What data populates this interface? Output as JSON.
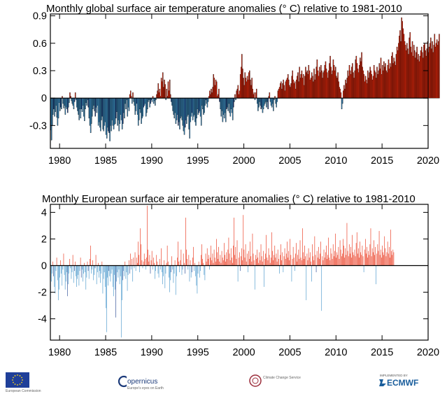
{
  "chart_data": [
    {
      "type": "bar",
      "title": "Monthly  global surface air temperature anomalies (° C) relative to 1981-2010",
      "xlabel": "",
      "ylabel": "",
      "xlim": [
        1979,
        2020
      ],
      "ylim": [
        -0.55,
        0.92
      ],
      "x_ticks": [
        1980,
        1985,
        1990,
        1995,
        2000,
        2005,
        2010,
        2015,
        2020
      ],
      "x_tick_labels": [
        "1980",
        "1985",
        "1990",
        "1995",
        "2000",
        "2005",
        "2010",
        "2015",
        "2020"
      ],
      "y_ticks": [
        0.9,
        0.6,
        0.3,
        0,
        -0.3
      ],
      "y_tick_labels": [
        "0.9",
        "0.6",
        "0.3",
        "0",
        "-0.3"
      ],
      "grid": false,
      "colors": {
        "positive": "#e8270a",
        "negative": "#3a8fc7",
        "negative_dark": "#1a3c8c",
        "outline": "#000000"
      },
      "start_year": 1979,
      "months_per_point": 1,
      "values": [
        -0.35,
        -0.46,
        -0.3,
        -0.18,
        -0.12,
        -0.2,
        -0.15,
        -0.08,
        -0.21,
        -0.3,
        -0.22,
        -0.05,
        -0.14,
        -0.1,
        -0.12,
        0.02,
        -0.06,
        -0.11,
        -0.08,
        -0.18,
        -0.1,
        -0.12,
        -0.16,
        -0.1,
        -0.05,
        0.06,
        0.02,
        -0.03,
        -0.06,
        -0.08,
        -0.12,
        -0.04,
        0.06,
        -0.02,
        -0.1,
        -0.14,
        -0.18,
        -0.24,
        -0.12,
        -0.22,
        -0.12,
        -0.15,
        -0.08,
        -0.2,
        -0.25,
        -0.12,
        -0.05,
        -0.08,
        -0.02,
        -0.1,
        -0.22,
        -0.3,
        -0.38,
        -0.28,
        -0.2,
        -0.12,
        -0.08,
        -0.14,
        -0.2,
        -0.1,
        -0.16,
        -0.08,
        -0.3,
        -0.26,
        -0.32,
        -0.36,
        -0.24,
        -0.2,
        -0.34,
        -0.36,
        -0.3,
        -0.26,
        -0.4,
        -0.44,
        -0.32,
        -0.36,
        -0.38,
        -0.47,
        -0.3,
        -0.36,
        -0.24,
        -0.3,
        -0.34,
        -0.29,
        -0.28,
        -0.22,
        -0.15,
        -0.3,
        -0.24,
        -0.36,
        -0.28,
        -0.18,
        -0.24,
        -0.34,
        -0.28,
        -0.16,
        -0.22,
        -0.06,
        -0.12,
        -0.02,
        -0.2,
        -0.1,
        -0.14,
        0.04,
        0.08,
        0.02,
        -0.06,
        0.06,
        -0.04,
        -0.08,
        -0.18,
        -0.14,
        -0.06,
        -0.18,
        -0.3,
        -0.24,
        -0.12,
        -0.16,
        -0.28,
        -0.22,
        -0.2,
        -0.1,
        -0.08,
        -0.06,
        -0.2,
        -0.16,
        -0.12,
        -0.04,
        -0.02,
        -0.1,
        -0.06,
        -0.02,
        -0.04,
        0.02,
        -0.06,
        -0.03,
        -0.08,
        -0.02,
        0.04,
        0.08,
        0.16,
        0.06,
        0.1,
        0.02,
        0.22,
        0.18,
        0.28,
        0.12,
        0.2,
        0.15,
        -0.02,
        0.1,
        0.02,
        0.18,
        0.08,
        0.2,
        0.04,
        -0.04,
        -0.08,
        -0.14,
        -0.18,
        -0.22,
        -0.16,
        -0.28,
        -0.24,
        -0.18,
        -0.3,
        -0.26,
        -0.34,
        -0.22,
        -0.2,
        -0.24,
        -0.3,
        -0.36,
        -0.4,
        -0.32,
        -0.24,
        -0.28,
        -0.2,
        -0.18,
        -0.34,
        -0.44,
        -0.26,
        -0.2,
        -0.16,
        -0.24,
        -0.2,
        -0.18,
        -0.26,
        -0.3,
        -0.22,
        -0.12,
        -0.18,
        -0.16,
        -0.14,
        -0.2,
        -0.3,
        -0.08,
        -0.12,
        -0.18,
        -0.16,
        -0.08,
        -0.02,
        -0.06,
        -0.1,
        -0.04,
        0.02,
        0.08,
        0.04,
        0.1,
        0.06,
        0.12,
        0.26,
        0.22,
        0.14,
        0.2,
        0.18,
        0.02,
        0.04,
        0.1,
        -0.04,
        -0.12,
        -0.2,
        -0.14,
        -0.26,
        -0.18,
        -0.22,
        -0.16,
        -0.26,
        -0.12,
        -0.1,
        -0.14,
        -0.06,
        -0.16,
        -0.2,
        -0.12,
        -0.16,
        -0.24,
        -0.1,
        -0.04,
        0.04,
        -0.02,
        0.08,
        0.1,
        0.14,
        0.04,
        0.08,
        0.26,
        0.34,
        0.48,
        0.32,
        0.22,
        0.14,
        0.28,
        0.22,
        0.18,
        0.24,
        0.2,
        0.28,
        0.3,
        0.2,
        0.14,
        0.22,
        0.1,
        0.04,
        0.06,
        -0.02,
        0.06,
        0.1,
        -0.06,
        -0.14,
        -0.1,
        -0.04,
        -0.08,
        -0.12,
        -0.1,
        -0.16,
        -0.12,
        -0.08,
        -0.06,
        -0.04,
        -0.1,
        -0.04,
        -0.12,
        0.02,
        0.06,
        -0.04,
        -0.08,
        -0.1,
        -0.06,
        -0.14,
        -0.02,
        0.02,
        -0.06,
        -0.1,
        -0.04,
        0.08,
        0.1,
        0.12,
        0.16,
        0.18,
        0.1,
        0.16,
        0.2,
        0.14,
        0.08,
        0.18,
        0.2,
        0.22,
        0.26,
        0.2,
        0.14,
        0.12,
        0.16,
        0.24,
        0.3,
        0.2,
        0.16,
        0.18,
        0.1,
        0.2,
        0.24,
        0.28,
        0.18,
        0.34,
        0.22,
        0.26,
        0.3,
        0.22,
        0.26,
        0.14,
        0.24,
        0.34,
        0.28,
        0.3,
        0.26,
        0.36,
        0.3,
        0.2,
        0.22,
        0.28,
        0.24,
        0.18,
        0.32,
        0.2,
        0.26,
        0.34,
        0.42,
        0.3,
        0.24,
        0.34,
        0.28,
        0.36,
        0.3,
        0.22,
        0.28,
        0.3,
        0.36,
        0.4,
        0.32,
        0.28,
        0.22,
        0.3,
        0.38,
        0.46,
        0.34,
        0.26,
        0.3,
        0.42,
        0.36,
        0.3,
        0.34,
        0.24,
        0.22,
        0.28,
        0.18,
        0.12,
        0.1,
        0.06,
        -0.12,
        -0.06,
        0.08,
        0.14,
        0.1,
        0.2,
        0.16,
        0.22,
        0.3,
        0.24,
        0.36,
        0.3,
        0.26,
        0.34,
        0.38,
        0.28,
        0.22,
        0.3,
        0.42,
        0.46,
        0.38,
        0.32,
        0.28,
        0.36,
        0.44,
        0.4,
        0.5,
        0.34,
        0.3,
        0.26,
        0.18,
        0.24,
        0.2,
        0.16,
        0.3,
        0.22,
        0.28,
        0.34,
        0.3,
        0.26,
        0.2,
        0.24,
        0.36,
        0.3,
        0.28,
        0.22,
        0.34,
        0.26,
        0.3,
        0.38,
        0.32,
        0.44,
        0.26,
        0.36,
        0.3,
        0.4,
        0.34,
        0.38,
        0.3,
        0.28,
        0.36,
        0.42,
        0.32,
        0.38,
        0.34,
        0.46,
        0.5,
        0.38,
        0.44,
        0.4,
        0.36,
        0.48,
        0.56,
        0.52,
        0.6,
        0.68,
        0.74,
        0.62,
        0.88,
        0.84,
        0.76,
        0.7,
        0.62,
        0.58,
        0.52,
        0.6,
        0.54,
        0.48,
        0.66,
        0.72,
        0.56,
        0.5,
        0.62,
        0.46,
        0.58,
        0.52,
        0.44,
        0.5,
        0.56,
        0.42,
        0.48,
        0.4,
        0.46,
        0.52,
        0.56,
        0.5,
        0.44,
        0.58,
        0.6,
        0.52,
        0.46,
        0.54,
        0.62,
        0.5,
        0.56,
        0.6,
        0.66,
        0.54,
        0.62,
        0.5,
        0.58,
        0.7,
        0.56,
        0.6,
        0.64,
        0.58,
        0.62,
        0.7
      ]
    },
    {
      "type": "bar",
      "title": "Monthly  European surface air temperature anomalies (° C) relative to 1981-2010",
      "xlabel": "",
      "ylabel": "",
      "xlim": [
        1979,
        2020
      ],
      "ylim": [
        -5.6,
        4.6
      ],
      "x_ticks": [
        1980,
        1985,
        1990,
        1995,
        2000,
        2005,
        2010,
        2015,
        2020
      ],
      "x_tick_labels": [
        "1980",
        "1985",
        "1990",
        "1995",
        "2000",
        "2005",
        "2010",
        "2015",
        "2020"
      ],
      "y_ticks": [
        4,
        2,
        0,
        -2,
        -4
      ],
      "y_tick_labels": [
        "4",
        "2",
        "0",
        "-2",
        "-4"
      ],
      "grid": false,
      "colors": {
        "positive": "#e8270a",
        "negative": "#3a8fc7",
        "negative_dark": "#1a3c8c"
      },
      "start_year": 1979,
      "months_per_point": 1,
      "values": [
        -2.5,
        -1.2,
        -0.6,
        0.3,
        -0.8,
        -1.6,
        -2.1,
        -0.4,
        0.6,
        -1.1,
        -2.6,
        -1.8,
        -0.9,
        0.4,
        -0.6,
        -1.5,
        -0.3,
        0.9,
        -0.7,
        -1.8,
        -1.2,
        -0.5,
        -2.3,
        -1.4,
        -0.6,
        0.5,
        -0.2,
        -1.0,
        -0.5,
        0.8,
        -1.3,
        -0.4,
        0.3,
        -0.8,
        -1.6,
        -1.0,
        -0.7,
        -1.5,
        -0.4,
        0.6,
        -0.9,
        -0.3,
        -1.2,
        -0.6,
        0.2,
        -0.5,
        -1.8,
        -0.9,
        0.3,
        -0.4,
        -1.0,
        0.5,
        1.5,
        -0.6,
        -0.3,
        0.4,
        -1.1,
        -0.7,
        -0.2,
        0.8,
        -1.4,
        -0.5,
        0.2,
        -0.9,
        -0.4,
        -1.3,
        -0.6,
        0.3,
        -2.1,
        -1.0,
        -0.5,
        -1.6,
        -3.2,
        -5.0,
        -0.9,
        -1.5,
        -0.4,
        -0.8,
        -1.2,
        -0.6,
        -0.3,
        -1.6,
        -2.3,
        -0.7,
        -1.8,
        -3.9,
        -1.2,
        -0.5,
        -0.9,
        -0.3,
        -1.4,
        -0.8,
        -5.4,
        -2.6,
        -1.1,
        -0.4,
        -0.8,
        0.3,
        -1.0,
        -0.5,
        -1.9,
        -0.7,
        0.4,
        -0.6,
        0.9,
        -0.3,
        0.5,
        -1.2,
        0.6,
        -0.2,
        1.0,
        -0.4,
        0.6,
        0.2,
        1.8,
        0.8,
        -0.5,
        2.8,
        1.6,
        0.4,
        -0.2,
        0.3,
        0.9,
        0.5,
        -0.3,
        0.6,
        4.5,
        1.2,
        0.3,
        0.8,
        -0.6,
        0.4,
        1.1,
        -0.3,
        0.6,
        0.2,
        -1.0,
        -0.4,
        0.8,
        0.3,
        -0.6,
        -0.9,
        0.5,
        -0.3,
        1.3,
        -0.5,
        -1.4,
        -0.8,
        0.4,
        -1.7,
        -0.6,
        0.2,
        1.5,
        0.3,
        -0.9,
        -2.0,
        -1.1,
        -0.5,
        0.7,
        -0.3,
        -1.3,
        -0.6,
        0.4,
        -2.2,
        -0.8,
        0.6,
        1.8,
        0.3,
        -0.5,
        0.4,
        1.2,
        -0.7,
        -0.3,
        0.9,
        0.2,
        -0.6,
        3.6,
        1.2,
        0.5,
        -0.3,
        0.8,
        -1.2,
        0.4,
        -0.9,
        -0.5,
        0.6,
        1.4,
        -0.4,
        0.2,
        -0.8,
        -1.5,
        -2.1,
        -0.6,
        0.3,
        -0.9,
        -0.4,
        0.8,
        1.6,
        0.5,
        0.2,
        -0.7,
        -1.1,
        0.9,
        0.3,
        1.3,
        0.5,
        0.8,
        -0.3,
        0.6,
        1.5,
        0.4,
        0.9,
        0.2,
        1.2,
        0.6,
        0.3,
        2.0,
        1.0,
        0.5,
        1.4,
        0.3,
        0.8,
        0.2,
        1.1,
        0.6,
        0.4,
        1.7,
        0.8,
        0.3,
        1.0,
        0.5,
        1.2,
        2.1,
        0.9,
        0.4,
        1.3,
        0.6,
        0.2,
        1.5,
        3.6,
        0.8,
        1.4,
        0.5,
        1.9,
        -1.2,
        0.6,
        1.0,
        -0.4,
        0.7,
        1.3,
        0.4,
        3.8,
        1.2,
        0.6,
        1.6,
        0.3,
        0.9,
        -0.5,
        1.1,
        0.5,
        1.8,
        0.7,
        0.3,
        2.4,
        0.9,
        0.4,
        -1.8,
        0.8,
        0.5,
        1.2,
        0.6,
        0.2,
        1.0,
        0.4,
        1.6,
        0.7,
        0.3,
        1.1,
        -1.6,
        0.5,
        0.9,
        2.3,
        0.6,
        0.4,
        1.3,
        0.8,
        0.2,
        0.6,
        2.5,
        1.1,
        0.4,
        0.8,
        1.5,
        0.6,
        0.9,
        0.3,
        1.2,
        0.5,
        -0.6,
        0.8,
        1.6,
        0.4,
        1.0,
        -0.5,
        0.7,
        1.3,
        0.5,
        0.9,
        1.8,
        0.6,
        1.1,
        0.4,
        2.0,
        0.8,
        -1.2,
        0.5,
        1.4,
        0.6,
        -0.4,
        0.9,
        1.7,
        0.3,
        0.8,
        1.2,
        0.5,
        1.9,
        0.6,
        0.4,
        2.8,
        1.0,
        0.5,
        1.5,
        0.7,
        -2.6,
        0.9,
        0.4,
        1.3,
        0.6,
        1.0,
        0.3,
        -1.2,
        1.6,
        0.7,
        0.4,
        2.2,
        0.8,
        -0.5,
        1.1,
        0.6,
        1.4,
        0.5,
        0.9,
        1.8,
        -3.4,
        0.7,
        0.4,
        1.2,
        0.6,
        1.0,
        1.5,
        0.5,
        0.8,
        2.1,
        0.6,
        0.4,
        1.3,
        0.9,
        0.5,
        1.6,
        0.7,
        1.1,
        2.4,
        0.6,
        1.0,
        0.8,
        1.4,
        0.5,
        1.9,
        1.2,
        0.7,
        0.9,
        2.0,
        1.5,
        0.6,
        1.3,
        0.8,
        3.2,
        1.1,
        0.7,
        1.6,
        0.9,
        1.4,
        0.6,
        2.3,
        1.0,
        0.8,
        1.2,
        0.7,
        1.7,
        2.5,
        0.9,
        1.3,
        0.6,
        1.8,
        1.0,
        0.8,
        1.5,
        0.7,
        -0.5,
        1.2,
        2.0,
        0.9,
        1.4,
        0.6,
        1.1,
        0.8,
        1.6,
        2.8,
        0.7,
        1.3,
        1.0,
        1.9,
        0.8,
        1.4,
        -1.4,
        0.9,
        1.6,
        1.1,
        2.6,
        0.8,
        1.2,
        0.6,
        1.5,
        1.0,
        0.8,
        2.2,
        1.3,
        0.7,
        1.0,
        1.8,
        0.9,
        1.4,
        0.6,
        2.7,
        1.1,
        0.8,
        1.2,
        1.0
      ]
    }
  ],
  "logos": {
    "eu_caption": "European Commission",
    "copernicus": "opernicus",
    "copernicus_sub": "Europe's eyes on Earth",
    "c3s": "Climate Change Service",
    "ecmwf_pre": "IMPLEMENTED BY",
    "ecmwf": "ECMWF"
  }
}
